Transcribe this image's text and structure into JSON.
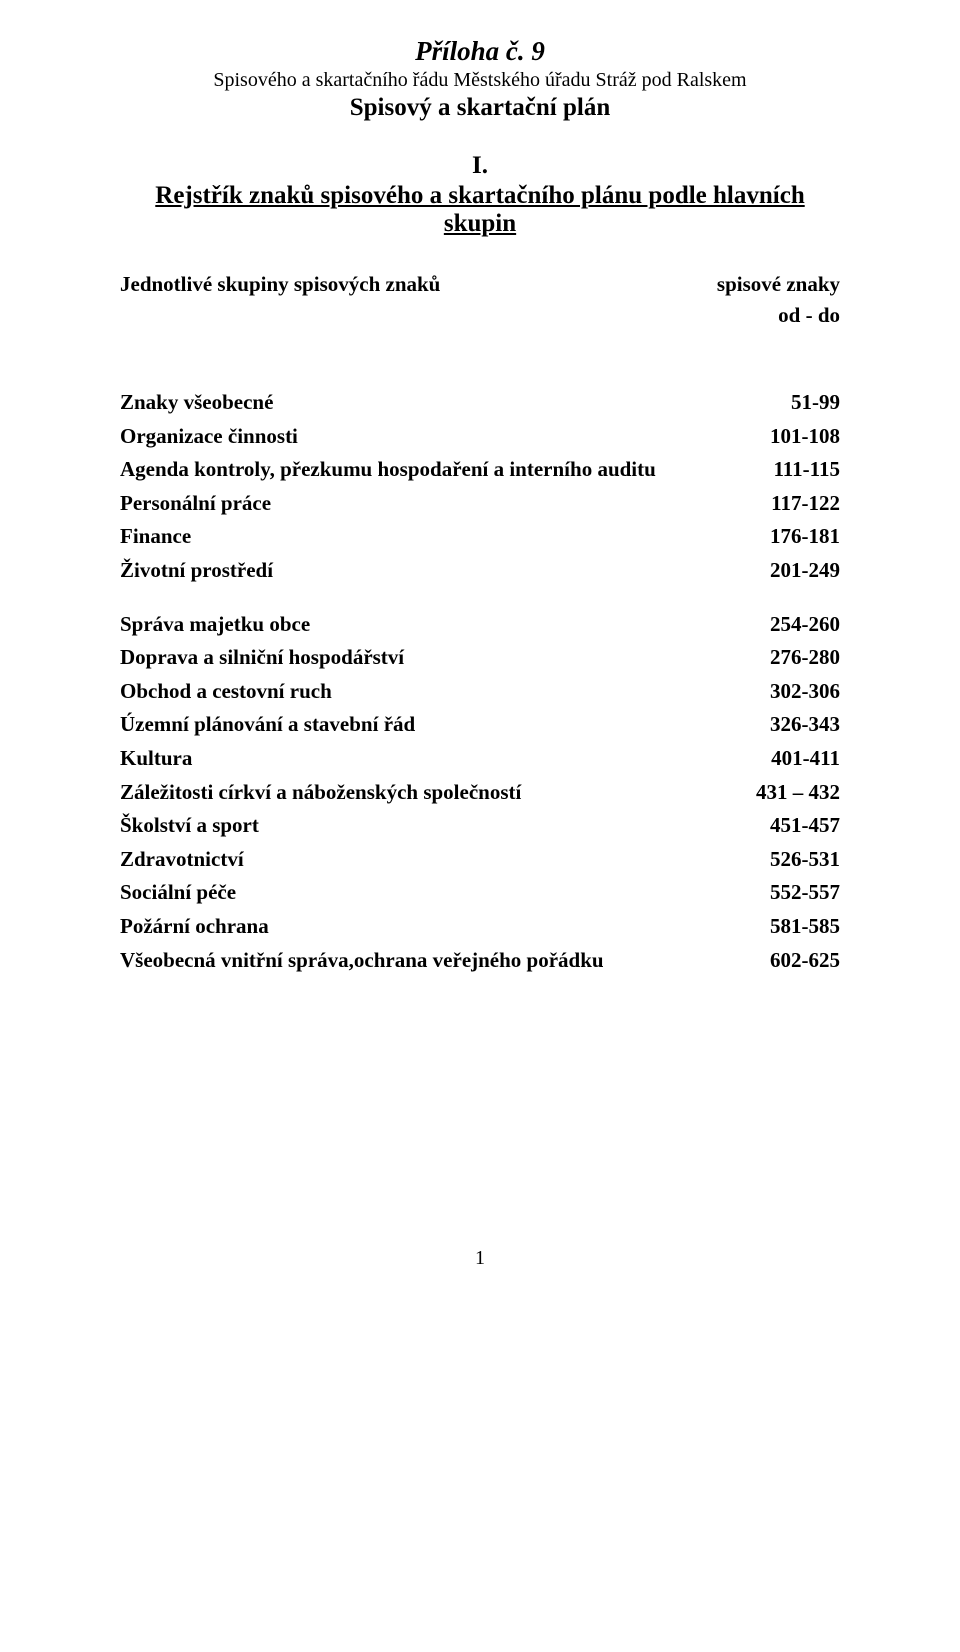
{
  "header": {
    "title_main": "Příloha č. 9",
    "title_sub": "Spisového a skartačního řádu Městského úřadu Stráž pod Ralskem",
    "title_plan": "Spisový a skartační plán",
    "roman": "I.",
    "index_title": "Rejstřík znaků spisového a skartačního plánu podle hlavních skupin",
    "left_col_header": "Jednotlivé skupiny spisových znaků",
    "right_col_header": "spisové znaky",
    "right_col_sub": "od - do"
  },
  "entries_block1": [
    {
      "label": "Znaky všeobecné",
      "range": "51-99"
    },
    {
      "label": "Organizace činnosti",
      "range": "101-108"
    },
    {
      "label": "Agenda kontroly, přezkumu hospodaření a interního auditu",
      "range": "111-115"
    },
    {
      "label": "Personální práce",
      "range": "117-122"
    },
    {
      "label": "Finance",
      "range": "176-181"
    },
    {
      "label": "Životní prostředí",
      "range": "201-249"
    }
  ],
  "entries_block2": [
    {
      "label": "Správa majetku obce",
      "range": "254-260"
    },
    {
      "label": "Doprava  a silniční hospodářství",
      "range": "276-280"
    },
    {
      "label": "Obchod a cestovní ruch",
      "range": "302-306"
    },
    {
      "label": "Územní plánování a stavební řád",
      "range": "326-343"
    },
    {
      "label": "Kultura",
      "range": "401-411"
    },
    {
      "label": "Záležitosti církví a náboženských společností",
      "range": "431 – 432"
    },
    {
      "label": "Školství a sport",
      "range": "451-457"
    },
    {
      "label": "Zdravotnictví",
      "range": "526-531"
    },
    {
      "label": "Sociální péče",
      "range": "552-557"
    },
    {
      "label": "Požární ochrana",
      "range": "581-585"
    },
    {
      "label": "Všeobecná vnitřní správa,ochrana veřejného pořádku",
      "range": "602-625"
    }
  ],
  "page_number": "1"
}
